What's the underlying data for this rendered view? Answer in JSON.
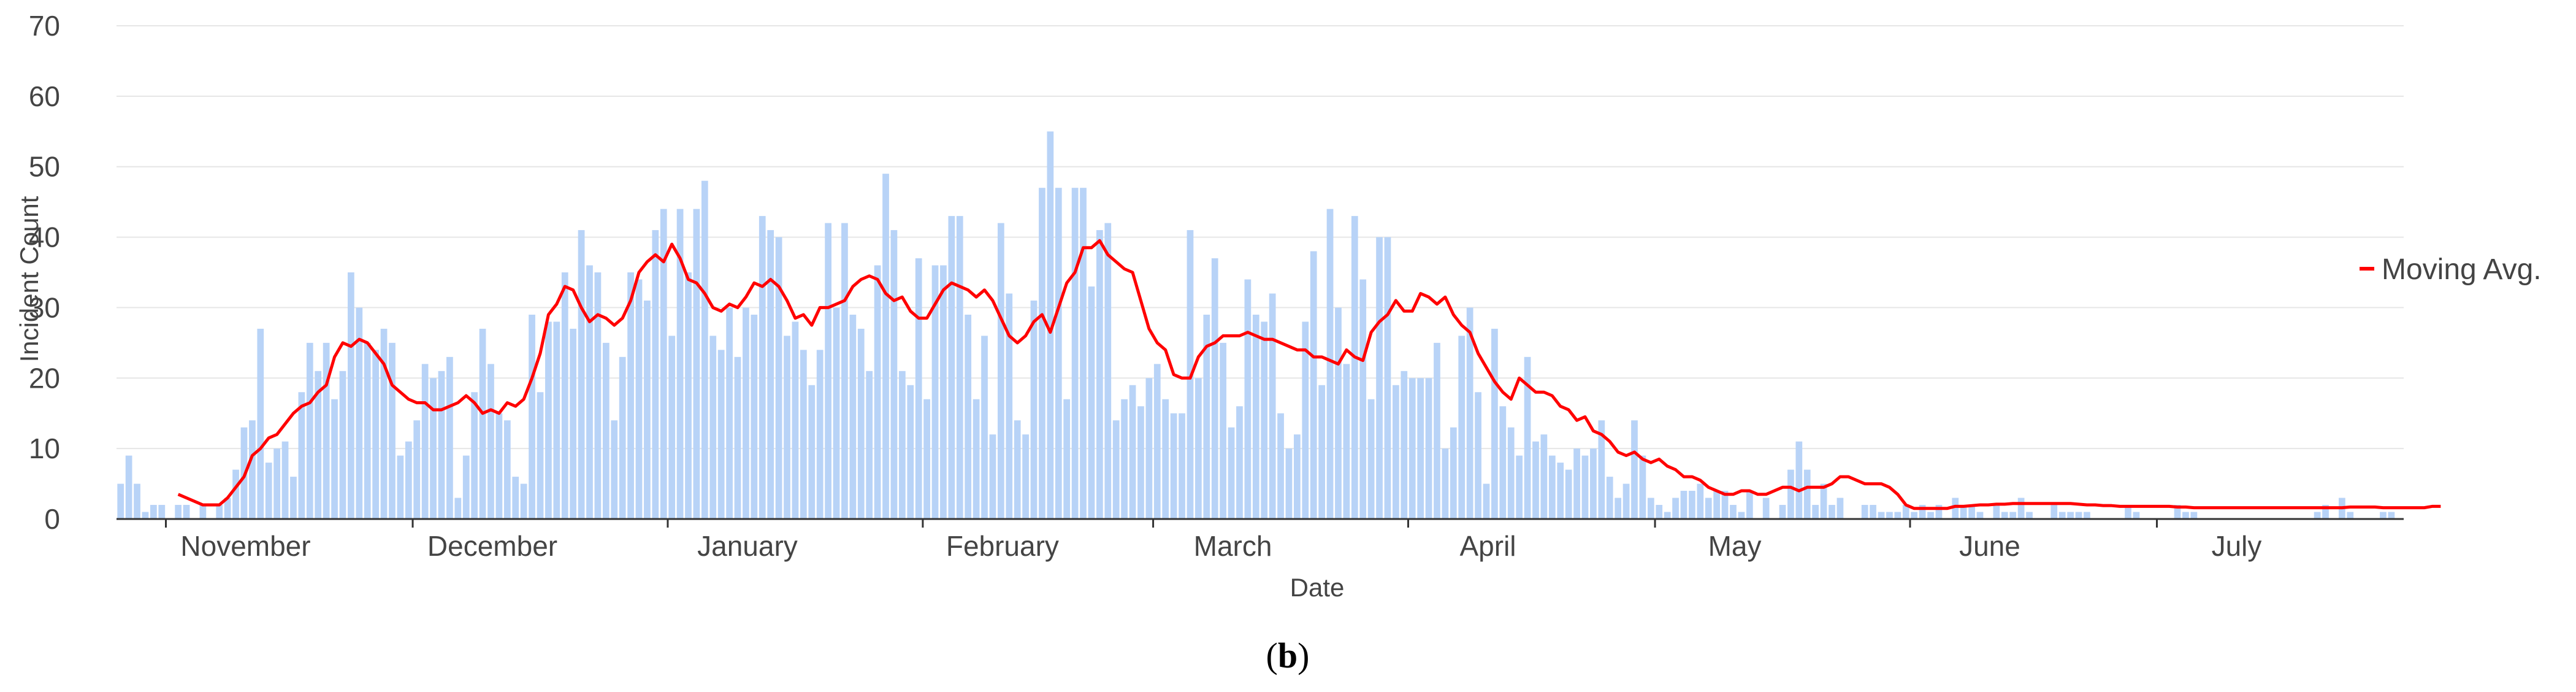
{
  "chart_data": {
    "type": "bar",
    "xlabel": "Date",
    "ylabel": "Incident Count",
    "ylim": [
      0,
      70
    ],
    "yticks": [
      0,
      10,
      20,
      30,
      40,
      50,
      60,
      70
    ],
    "grid": true,
    "legend_position": "right",
    "month_labels": [
      "November",
      "December",
      "January",
      "February",
      "March",
      "April",
      "May",
      "June",
      "July"
    ],
    "month_start_day": [
      6,
      36,
      67,
      98,
      126,
      157,
      187,
      218,
      248
    ],
    "series": [
      {
        "name": "",
        "kind": "bar",
        "color": "#b8d3f7",
        "values": [
          5,
          9,
          5,
          1,
          2,
          2,
          0,
          2,
          2,
          0,
          2,
          0,
          2,
          3,
          7,
          13,
          14,
          27,
          8,
          10,
          11,
          6,
          18,
          25,
          21,
          25,
          17,
          21,
          35,
          30,
          25,
          24,
          27,
          25,
          9,
          11,
          14,
          22,
          20,
          21,
          23,
          3,
          9,
          18,
          27,
          22,
          15,
          14,
          6,
          5,
          29,
          18,
          28,
          28,
          35,
          27,
          41,
          36,
          35,
          25,
          14,
          23,
          35,
          34,
          31,
          41,
          44,
          26,
          44,
          35,
          44,
          48,
          26,
          24,
          30,
          23,
          30,
          29,
          43,
          41,
          40,
          26,
          28,
          24,
          19,
          24,
          42,
          30,
          42,
          29,
          27,
          21,
          36,
          49,
          41,
          21,
          19,
          37,
          17,
          36,
          36,
          43,
          43,
          29,
          17,
          26,
          12,
          42,
          32,
          14,
          12,
          31,
          47,
          55,
          47,
          17,
          47,
          47,
          33,
          41,
          42,
          14,
          17,
          19,
          16,
          20,
          22,
          17,
          15,
          15,
          41,
          20,
          29,
          37,
          25,
          13,
          16,
          34,
          29,
          28,
          32,
          15,
          10,
          12,
          28,
          38,
          19,
          44,
          30,
          22,
          43,
          34,
          17,
          40,
          40,
          19,
          21,
          20,
          20,
          20,
          25,
          10,
          13,
          26,
          30,
          18,
          5,
          27,
          16,
          13,
          9,
          23,
          11,
          12,
          9,
          8,
          7,
          10,
          9,
          10,
          14,
          6,
          3,
          5,
          14,
          9,
          3,
          2,
          1,
          3,
          4,
          4,
          5,
          3,
          4,
          4,
          2,
          1,
          4,
          0,
          3,
          0,
          2,
          7,
          11,
          7,
          2,
          5,
          2,
          3,
          0,
          0,
          2,
          2,
          1,
          1,
          1,
          2,
          1,
          2,
          1,
          2,
          0,
          3,
          2,
          2,
          1,
          0,
          2,
          1,
          1,
          3,
          1,
          0,
          0,
          2,
          1,
          1,
          1,
          1,
          0,
          0,
          0,
          0,
          2,
          1,
          0,
          0,
          0,
          0,
          2,
          1,
          1,
          0,
          0,
          0,
          0,
          0,
          0,
          0,
          0,
          0,
          0,
          0,
          0,
          0,
          0,
          1,
          2,
          0,
          3,
          1,
          0,
          0,
          0,
          1,
          1,
          0
        ]
      },
      {
        "name": "Moving Avg.",
        "kind": "line",
        "color": "#ff0000",
        "values": [
          null,
          null,
          null,
          null,
          null,
          null,
          null,
          3.5,
          3,
          2.5,
          2,
          2,
          2,
          3,
          4.5,
          6,
          9,
          10,
          11.5,
          12,
          13.5,
          15,
          16,
          16.5,
          18,
          19,
          23,
          25,
          24.5,
          25.5,
          25,
          23.5,
          22,
          19,
          18,
          17,
          16.5,
          16.5,
          15.5,
          15.5,
          16,
          16.5,
          17.5,
          16.5,
          15,
          15.5,
          15,
          16.5,
          16,
          17,
          20,
          23.5,
          29,
          30.5,
          33,
          32.5,
          30,
          28,
          29,
          28.5,
          27.5,
          28.5,
          31,
          35,
          36.5,
          37.5,
          36.5,
          39,
          37,
          34,
          33.5,
          32,
          30,
          29.5,
          30.5,
          30,
          31.5,
          33.5,
          33,
          34,
          33,
          31,
          28.5,
          29,
          27.5,
          30,
          30,
          30.5,
          31,
          33,
          34,
          34.5,
          34,
          32,
          31,
          31.5,
          29.5,
          28.5,
          28.5,
          30.5,
          32.5,
          33.5,
          33,
          32.5,
          31.5,
          32.5,
          31,
          28.5,
          26,
          25,
          26,
          28,
          29,
          26.5,
          30,
          33.5,
          35,
          38.5,
          38.5,
          39.5,
          37.5,
          36.5,
          35.5,
          35,
          31,
          27,
          25,
          24,
          20.5,
          20,
          20,
          23,
          24.5,
          25,
          26,
          26,
          26,
          26.5,
          26,
          25.5,
          25.5,
          25,
          24.5,
          24,
          24,
          23,
          23,
          22.5,
          22,
          24,
          23,
          22.5,
          26.5,
          28,
          29,
          31,
          29.5,
          29.5,
          32,
          31.5,
          30.5,
          31.5,
          29,
          27.5,
          26.5,
          23.5,
          21.5,
          19.5,
          18,
          17,
          20,
          19,
          18,
          18,
          17.5,
          16,
          15.5,
          14,
          14.5,
          12.5,
          12,
          11,
          9.5,
          9,
          9.5,
          8.5,
          8,
          8.5,
          7.5,
          7,
          6,
          6,
          5.5,
          4.5,
          4,
          3.5,
          3.5,
          4,
          4,
          3.5,
          3.5,
          4,
          4.5,
          4.5,
          4,
          4.5,
          4.5,
          4.5,
          5,
          6,
          6,
          5.5,
          5,
          5,
          5,
          4.5,
          3.5,
          2,
          1.5,
          1.5,
          1.5,
          1.5,
          1.5,
          1.8,
          1.8,
          1.9,
          2,
          2,
          2.1,
          2.1,
          2.2,
          2.2,
          2.2,
          2.2,
          2.2,
          2.2,
          2.2,
          2.2,
          2.1,
          2,
          2,
          1.9,
          1.9,
          1.8,
          1.8,
          1.8,
          1.8,
          1.8,
          1.8,
          1.8,
          1.7,
          1.7,
          1.6,
          1.6,
          1.6,
          1.6,
          1.6,
          1.6,
          1.6,
          1.6,
          1.6,
          1.6,
          1.6,
          1.6,
          1.6,
          1.6,
          1.6,
          1.6,
          1.6,
          1.6,
          1.6,
          1.7,
          1.7,
          1.7,
          1.7,
          1.6,
          1.6,
          1.6,
          1.6,
          1.6,
          1.6,
          1.8,
          1.8
        ]
      }
    ]
  },
  "caption": {
    "open": "(",
    "letter": "b",
    "close": ")"
  }
}
